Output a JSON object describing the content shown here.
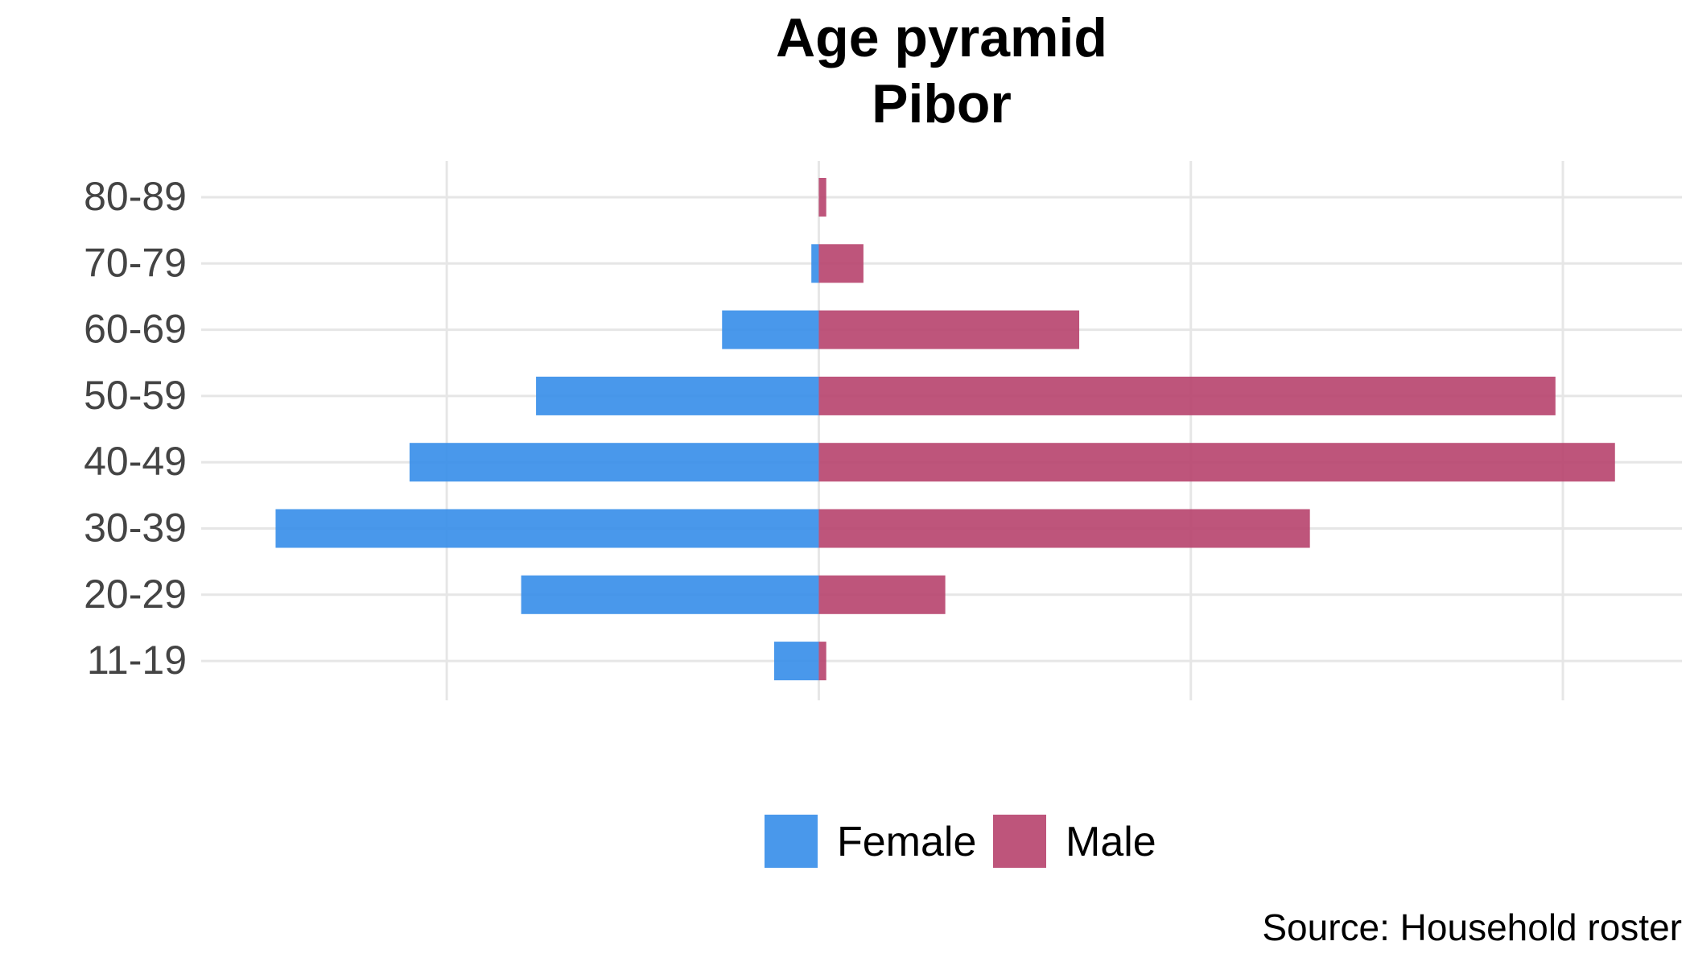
{
  "chart_data": {
    "type": "bar",
    "orientation": "horizontal",
    "title": "Age pyramid",
    "subtitle": "Pibor",
    "caption": "Source: Household roster",
    "categories": [
      "11-19",
      "20-29",
      "30-39",
      "40-49",
      "50-59",
      "60-69",
      "70-79",
      "80-89"
    ],
    "series": [
      {
        "name": "Female",
        "color": "#3a8fe9",
        "values": [
          6,
          40,
          73,
          55,
          38,
          13,
          1,
          0
        ]
      },
      {
        "name": "Male",
        "color": "#b84670",
        "values": [
          1,
          17,
          66,
          107,
          99,
          35,
          6,
          1
        ]
      }
    ],
    "xlim": [
      -83,
      116
    ],
    "grid": true,
    "x_tick_labels_shown": false,
    "legend": {
      "position": "bottom"
    }
  }
}
